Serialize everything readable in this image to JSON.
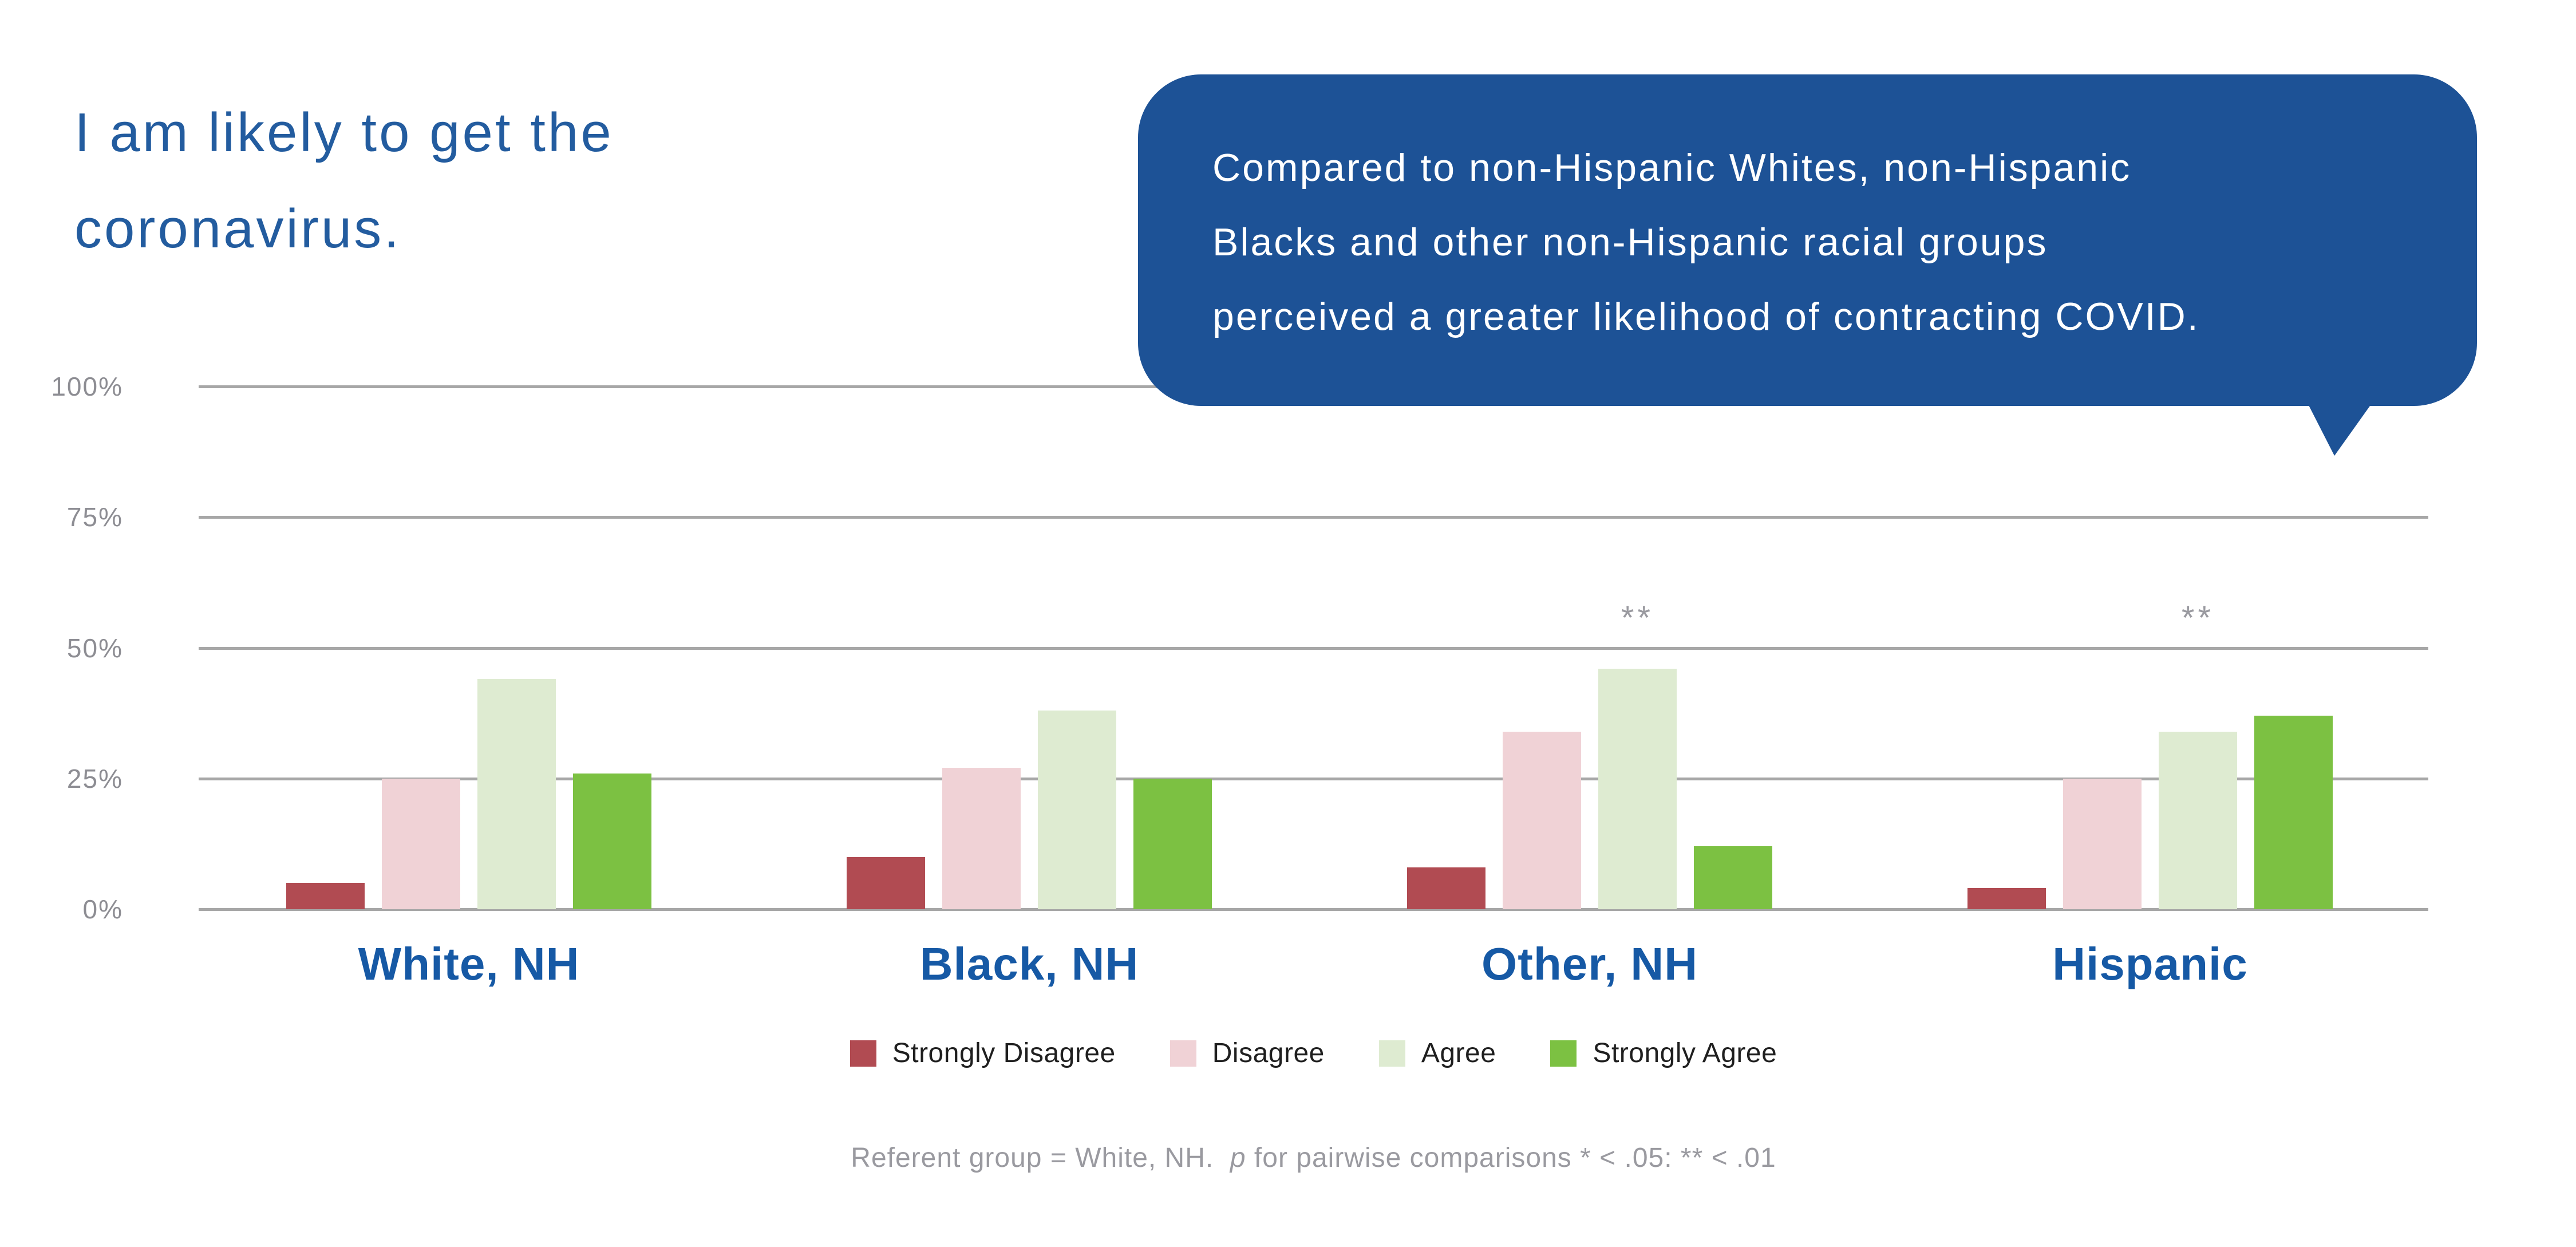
{
  "title": {
    "line1": "I am likely to get the",
    "line2": "coronavirus."
  },
  "callout": {
    "lines": [
      "Compared to non-Hispanic Whites, non-Hispanic",
      "Blacks and other non-Hispanic racial groups",
      "perceived a greater likelihood of contracting COVID."
    ],
    "bg_color": "#1D5296",
    "text_color": "#FFFFFF"
  },
  "chart_data": {
    "type": "bar",
    "title": "I am likely to get the coronavirus.",
    "categories": [
      "White, NH",
      "Black, NH",
      "Other, NH",
      "Hispanic"
    ],
    "series": [
      {
        "name": "Strongly Disagree",
        "color": "#B14B52",
        "values": [
          5,
          10,
          8,
          4
        ]
      },
      {
        "name": "Disagree",
        "color": "#F0D2D6",
        "values": [
          25,
          27,
          34,
          25
        ]
      },
      {
        "name": "Agree",
        "color": "#DEEBD1",
        "values": [
          44,
          38,
          46,
          34
        ]
      },
      {
        "name": "Strongly Agree",
        "color": "#7CC142",
        "values": [
          26,
          25,
          12,
          37
        ]
      }
    ],
    "y_ticks": [
      "100%",
      "75%",
      "50%",
      "25%",
      "0%"
    ],
    "y_tick_values": [
      100,
      75,
      50,
      25,
      0
    ],
    "ylim": [
      0,
      100
    ],
    "grid": true,
    "legend_position": "bottom",
    "significance": [
      {
        "category": "Other, NH",
        "series": "Agree",
        "marker": "**"
      },
      {
        "category": "Hispanic",
        "series": "Agree",
        "marker": "**"
      }
    ]
  },
  "footnote": {
    "prefix": "Referent group = White, NH.  ",
    "p_symbol": "p",
    "suffix": " for pairwise comparisons * < .05: ** < .01"
  },
  "colors": {
    "title_blue": "#235C9F",
    "category_blue": "#1659A5",
    "gridline_gray": "#A7A7A7",
    "axis_text_gray": "#8D8D93",
    "note_gray": "#9A9AA0"
  }
}
